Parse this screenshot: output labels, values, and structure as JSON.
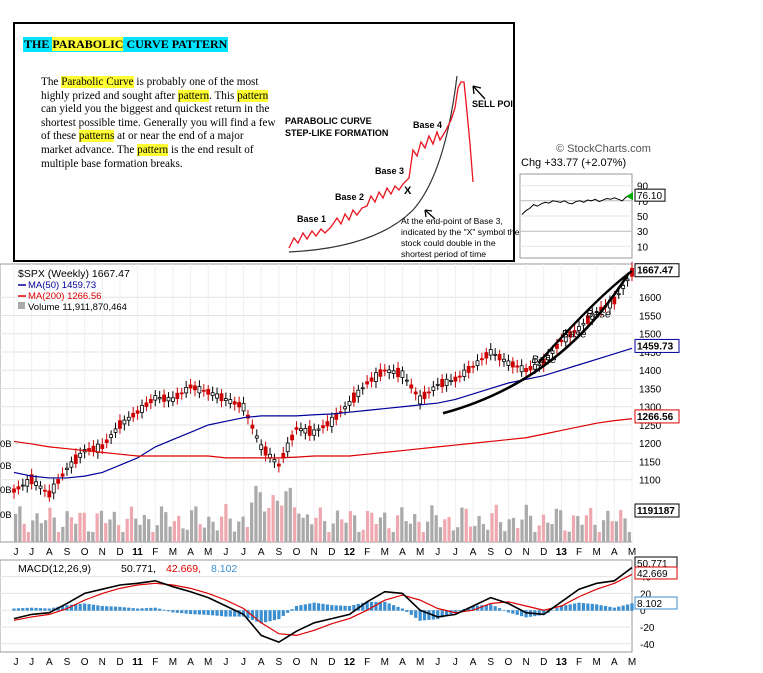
{
  "inset": {
    "title_pre": "THE ",
    "title_hl": "PARABOLIC",
    "title_post": " CURVE PATTERN",
    "body": [
      {
        "t": "The ",
        "hl": false
      },
      {
        "t": "Parabolic Curve",
        "hl": true
      },
      {
        "t": " is probably one of the most highly prized and sought after ",
        "hl": false
      },
      {
        "t": "pattern",
        "hl": true
      },
      {
        "t": ". This ",
        "hl": false
      },
      {
        "t": "pattern",
        "hl": true
      },
      {
        "t": " can yield you the biggest and quickest return in the shortest possible time. Generally you will find a few of these ",
        "hl": false
      },
      {
        "t": "patterns",
        "hl": true
      },
      {
        "t": " at or near the end of a major market advance. The ",
        "hl": false
      },
      {
        "t": "pattern",
        "hl": true
      },
      {
        "t": " is the end result of multiple base formation breaks.",
        "hl": false
      }
    ],
    "diagram_title_1": "PARABOLIC CURVE",
    "diagram_title_2": "STEP-LIKE FORMATION",
    "base_labels": [
      "Base 1",
      "Base 2",
      "Base 3",
      "Base 4"
    ],
    "x_mark": "X",
    "sell_point": "SELL POINT",
    "note": "At the end-point of Base 3, indicated by the \"X\" symbol the stock could double in the shortest period of time"
  },
  "watermark": "© StockCharts.com",
  "rsi": {
    "header": "Chg +33.77 (+2.07%)",
    "ticks": [
      "90",
      "70",
      "50",
      "30",
      "10"
    ],
    "value": "76.10",
    "marker_color": "#00aa00"
  },
  "price_panel": {
    "legend_title": "$SPX (Weekly) 1667.47",
    "legend_ma50": "MA(50) 1459.73",
    "legend_ma200": "MA(200) 1266.56",
    "legend_vol": "Volume 11,911,870,464",
    "y_ticks": [
      "1600",
      "1550",
      "1500",
      "1450",
      "1400",
      "1350",
      "1300",
      "1250",
      "1200",
      "1150",
      "1100"
    ],
    "price_box": "1667.47",
    "ma50_box": "1459.73",
    "ma200_box": "1266.56",
    "vol_box": "1191187",
    "vol_left_labels": [
      "0B",
      "0B",
      "0B",
      "0B"
    ],
    "base_labels": [
      "Base",
      "Base",
      "Base"
    ],
    "colors": {
      "ma50": "#000099",
      "ma200": "#dd0000",
      "up": "#000000",
      "down": "#cc0000",
      "vol_up": "#aaaaaa",
      "vol_down": "#f0a8b0"
    }
  },
  "macd_panel": {
    "legend_title": "MACD(12,26,9)",
    "macd_value": "50.771",
    "signal_value": "42.669",
    "hist_value": "8.102",
    "y_ticks": [
      "40",
      "20",
      "0",
      "-20",
      "-40"
    ],
    "colors": {
      "macd": "#000000",
      "signal": "#dd0000",
      "hist": "#3b8fd1"
    }
  },
  "x_axis_labels": [
    "J",
    "J",
    "A",
    "S",
    "O",
    "N",
    "D",
    "11",
    "F",
    "M",
    "A",
    "M",
    "J",
    "J",
    "A",
    "S",
    "O",
    "N",
    "D",
    "12",
    "F",
    "M",
    "A",
    "M",
    "J",
    "J",
    "A",
    "S",
    "O",
    "N",
    "D",
    "13",
    "F",
    "M",
    "A",
    "M"
  ],
  "chart_data": {
    "type": "line",
    "title": "$SPX (Weekly) 1667.47",
    "x": [
      "2010-06",
      "2010-07",
      "2010-08",
      "2010-09",
      "2010-10",
      "2010-11",
      "2010-12",
      "2011-01",
      "2011-02",
      "2011-03",
      "2011-04",
      "2011-05",
      "2011-06",
      "2011-07",
      "2011-08",
      "2011-09",
      "2011-10",
      "2011-11",
      "2011-12",
      "2012-01",
      "2012-02",
      "2012-03",
      "2012-04",
      "2012-05",
      "2012-06",
      "2012-07",
      "2012-08",
      "2012-09",
      "2012-10",
      "2012-11",
      "2012-12",
      "2013-01",
      "2013-02",
      "2013-03",
      "2013-04",
      "2013-05"
    ],
    "series": [
      {
        "name": "$SPX",
        "values": [
          1070,
          1100,
          1060,
          1130,
          1180,
          1190,
          1250,
          1285,
          1325,
          1320,
          1355,
          1340,
          1320,
          1300,
          1190,
          1140,
          1240,
          1230,
          1260,
          1310,
          1365,
          1400,
          1390,
          1320,
          1360,
          1375,
          1410,
          1450,
          1420,
          1400,
          1420,
          1480,
          1515,
          1560,
          1590,
          1667
        ]
      },
      {
        "name": "MA(50)",
        "values": [
          1120,
          1110,
          1105,
          1105,
          1110,
          1120,
          1140,
          1160,
          1190,
          1210,
          1230,
          1250,
          1260,
          1270,
          1275,
          1275,
          1275,
          1278,
          1280,
          1285,
          1290,
          1295,
          1300,
          1305,
          1310,
          1320,
          1335,
          1350,
          1365,
          1375,
          1385,
          1400,
          1415,
          1430,
          1445,
          1460
        ]
      },
      {
        "name": "MA(200)",
        "values": [
          1205,
          1198,
          1190,
          1185,
          1180,
          1175,
          1170,
          1165,
          1165,
          1165,
          1165,
          1165,
          1160,
          1160,
          1160,
          1160,
          1162,
          1165,
          1165,
          1165,
          1170,
          1175,
          1180,
          1185,
          1190,
          1195,
          1200,
          1205,
          1210,
          1215,
          1225,
          1235,
          1245,
          1255,
          1262,
          1267
        ]
      }
    ],
    "ylim": [
      1050,
      1680
    ],
    "legend": "top-left",
    "macd": {
      "name": "MACD(12,26,9)",
      "macd": [
        -10,
        -5,
        -3,
        8,
        20,
        25,
        30,
        32,
        35,
        28,
        22,
        15,
        5,
        -5,
        -30,
        -38,
        -25,
        -15,
        -10,
        -5,
        10,
        22,
        20,
        0,
        -8,
        -5,
        5,
        15,
        8,
        -3,
        -5,
        10,
        25,
        32,
        35,
        50.771
      ],
      "signal": [
        -12,
        -8,
        -5,
        2,
        12,
        20,
        26,
        30,
        32,
        30,
        26,
        20,
        12,
        2,
        -15,
        -28,
        -30,
        -24,
        -16,
        -10,
        0,
        12,
        18,
        12,
        2,
        -3,
        0,
        8,
        10,
        5,
        0,
        5,
        16,
        25,
        32,
        42.669
      ],
      "histogram_last": 8.102,
      "ylim": [
        -45,
        55
      ]
    },
    "rsi": {
      "last": 76.1,
      "ylim": [
        0,
        100
      ],
      "ticks": [
        10,
        30,
        50,
        70,
        90
      ]
    }
  }
}
